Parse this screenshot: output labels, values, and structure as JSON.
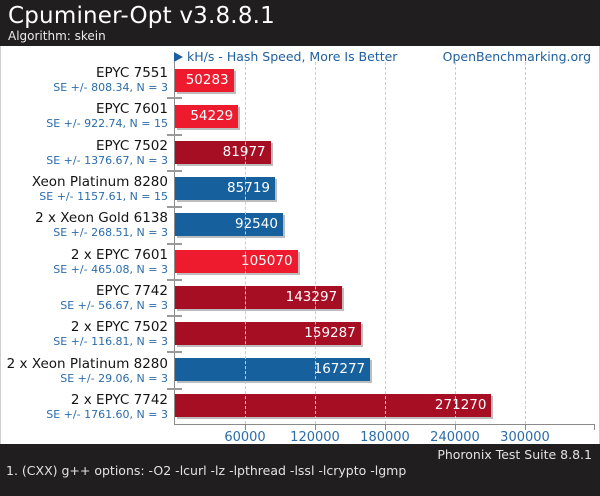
{
  "header": {
    "title": "Cpuminer-Opt v3.8.8.1",
    "subtitle": "Algorithm: skein"
  },
  "plot_header": {
    "axis_label": "kH/s - Hash Speed, More Is Better",
    "site": "OpenBenchmarking.org"
  },
  "footer": {
    "suite": "Phoronix Test Suite 8.8.1",
    "note": "1. (CXX) g++ options: -O2 -lcurl -lz -lpthread -lssl -lcrypto -lgmp"
  },
  "colors": {
    "red": "#ed1b2d",
    "darkred": "#a60e24",
    "blue": "#15609d",
    "accent_text": "#2b6caa"
  },
  "chart_data": {
    "type": "bar",
    "orientation": "horizontal",
    "title": "Cpuminer-Opt v3.8.8.1",
    "subtitle": "Algorithm: skein",
    "value_label": "kH/s - Hash Speed, More Is Better",
    "higher_is_better": true,
    "xlim": [
      0,
      360000
    ],
    "x_ticks": [
      60000,
      120000,
      180000,
      240000,
      300000
    ],
    "grid": "dashed-vertical",
    "bars": [
      {
        "label": "EPYC 7551",
        "se": "SE +/- 808.34, N = 3",
        "value": 50283,
        "color": "red"
      },
      {
        "label": "EPYC 7601",
        "se": "SE +/- 922.74, N = 15",
        "value": 54229,
        "color": "red"
      },
      {
        "label": "EPYC 7502",
        "se": "SE +/- 1376.67, N = 3",
        "value": 81977,
        "color": "darkred"
      },
      {
        "label": "Xeon Platinum 8280",
        "se": "SE +/- 1157.61, N = 15",
        "value": 85719,
        "color": "blue"
      },
      {
        "label": "2 x Xeon Gold 6138",
        "se": "SE +/- 268.51, N = 3",
        "value": 92540,
        "color": "blue"
      },
      {
        "label": "2 x EPYC 7601",
        "se": "SE +/- 465.08, N = 3",
        "value": 105070,
        "color": "red"
      },
      {
        "label": "EPYC 7742",
        "se": "SE +/- 56.67, N = 3",
        "value": 143297,
        "color": "darkred"
      },
      {
        "label": "2 x EPYC 7502",
        "se": "SE +/- 116.81, N = 3",
        "value": 159287,
        "color": "darkred"
      },
      {
        "label": "2 x Xeon Platinum 8280",
        "se": "SE +/- 29.06, N = 3",
        "value": 167277,
        "color": "blue"
      },
      {
        "label": "2 x EPYC 7742",
        "se": "SE +/- 1761.60, N = 3",
        "value": 271270,
        "color": "darkred"
      }
    ]
  }
}
